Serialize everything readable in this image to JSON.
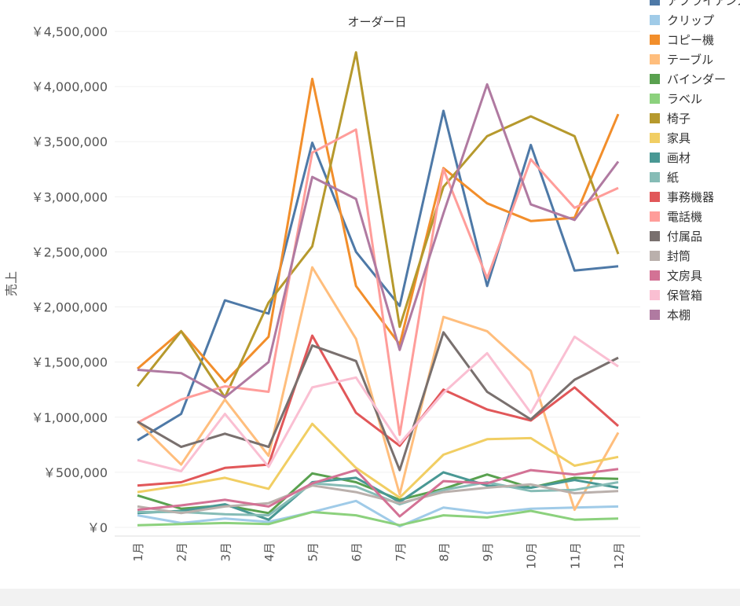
{
  "chart_data": {
    "type": "line",
    "title": "オーダー日",
    "xlabel": "",
    "ylabel": "売上",
    "categories": [
      "1月",
      "2月",
      "3月",
      "4月",
      "5月",
      "6月",
      "7月",
      "8月",
      "9月",
      "10月",
      "11月",
      "12月"
    ],
    "y_ticks": [
      "￥0",
      "￥500,000",
      "￥1,000,000",
      "￥1,500,000",
      "￥2,000,000",
      "￥2,500,000",
      "￥3,000,000",
      "￥3,500,000",
      "￥4,000,000",
      "￥4,500,000"
    ],
    "ylim": [
      0,
      4500000
    ],
    "grid": "horizontal",
    "legend_position": "right",
    "series": [
      {
        "name": "アプライアンス",
        "color": "#4e79a7",
        "values": [
          790000,
          1030000,
          2060000,
          1940000,
          3490000,
          2500000,
          2010000,
          3780000,
          2190000,
          3470000,
          2330000,
          2370000
        ]
      },
      {
        "name": "クリップ",
        "color": "#a0cbe8",
        "values": [
          110000,
          40000,
          80000,
          50000,
          140000,
          240000,
          10000,
          180000,
          130000,
          170000,
          180000,
          190000
        ]
      },
      {
        "name": "コピー機",
        "color": "#f28e2b",
        "values": [
          1440000,
          1780000,
          1320000,
          1730000,
          4070000,
          2190000,
          1660000,
          3260000,
          2940000,
          2780000,
          2810000,
          3750000
        ]
      },
      {
        "name": "テーブル",
        "color": "#ffbe7d",
        "values": [
          960000,
          570000,
          1160000,
          650000,
          2360000,
          1710000,
          300000,
          1910000,
          1780000,
          1420000,
          160000,
          860000
        ]
      },
      {
        "name": "バインダー",
        "color": "#59a14f",
        "values": [
          290000,
          170000,
          200000,
          130000,
          490000,
          410000,
          250000,
          350000,
          480000,
          360000,
          450000,
          440000
        ]
      },
      {
        "name": "ラベル",
        "color": "#8cd17d",
        "values": [
          20000,
          30000,
          40000,
          30000,
          140000,
          110000,
          20000,
          110000,
          90000,
          150000,
          70000,
          80000
        ]
      },
      {
        "name": "椅子",
        "color": "#b6992d",
        "values": [
          1280000,
          1780000,
          1180000,
          2040000,
          2550000,
          4310000,
          1820000,
          3090000,
          3550000,
          3730000,
          3550000,
          2480000
        ]
      },
      {
        "name": "家具",
        "color": "#f1ce63",
        "values": [
          320000,
          380000,
          450000,
          350000,
          940000,
          540000,
          270000,
          660000,
          800000,
          810000,
          560000,
          640000
        ]
      },
      {
        "name": "画材",
        "color": "#499894",
        "values": [
          130000,
          150000,
          210000,
          70000,
          410000,
          450000,
          230000,
          500000,
          380000,
          360000,
          430000,
          360000
        ]
      },
      {
        "name": "紙",
        "color": "#86bcb6",
        "values": [
          140000,
          140000,
          120000,
          110000,
          400000,
          370000,
          210000,
          340000,
          410000,
          330000,
          340000,
          410000
        ]
      },
      {
        "name": "事務機器",
        "color": "#e15759",
        "values": [
          380000,
          410000,
          540000,
          570000,
          1740000,
          1040000,
          740000,
          1250000,
          1070000,
          970000,
          1270000,
          920000
        ]
      },
      {
        "name": "電話機",
        "color": "#ff9d9a",
        "values": [
          950000,
          1160000,
          1280000,
          1230000,
          3400000,
          3610000,
          840000,
          3250000,
          2260000,
          3340000,
          2900000,
          3080000
        ]
      },
      {
        "name": "付属品",
        "color": "#79706e",
        "values": [
          960000,
          730000,
          850000,
          730000,
          1650000,
          1510000,
          520000,
          1770000,
          1230000,
          980000,
          1340000,
          1540000
        ]
      },
      {
        "name": "封筒",
        "color": "#bab0ac",
        "values": [
          190000,
          130000,
          190000,
          220000,
          380000,
          320000,
          220000,
          320000,
          360000,
          390000,
          310000,
          330000
        ]
      },
      {
        "name": "文房具",
        "color": "#d37295",
        "values": [
          160000,
          200000,
          250000,
          190000,
          400000,
          520000,
          100000,
          420000,
          400000,
          520000,
          480000,
          530000
        ]
      },
      {
        "name": "保管箱",
        "color": "#fabfd2",
        "values": [
          610000,
          510000,
          1030000,
          550000,
          1270000,
          1360000,
          760000,
          1220000,
          1580000,
          1040000,
          1730000,
          1460000
        ]
      },
      {
        "name": "本棚",
        "color": "#b07aa1",
        "values": [
          1430000,
          1400000,
          1180000,
          1500000,
          3180000,
          2980000,
          1610000,
          2850000,
          4020000,
          2930000,
          2790000,
          3320000
        ]
      }
    ]
  }
}
